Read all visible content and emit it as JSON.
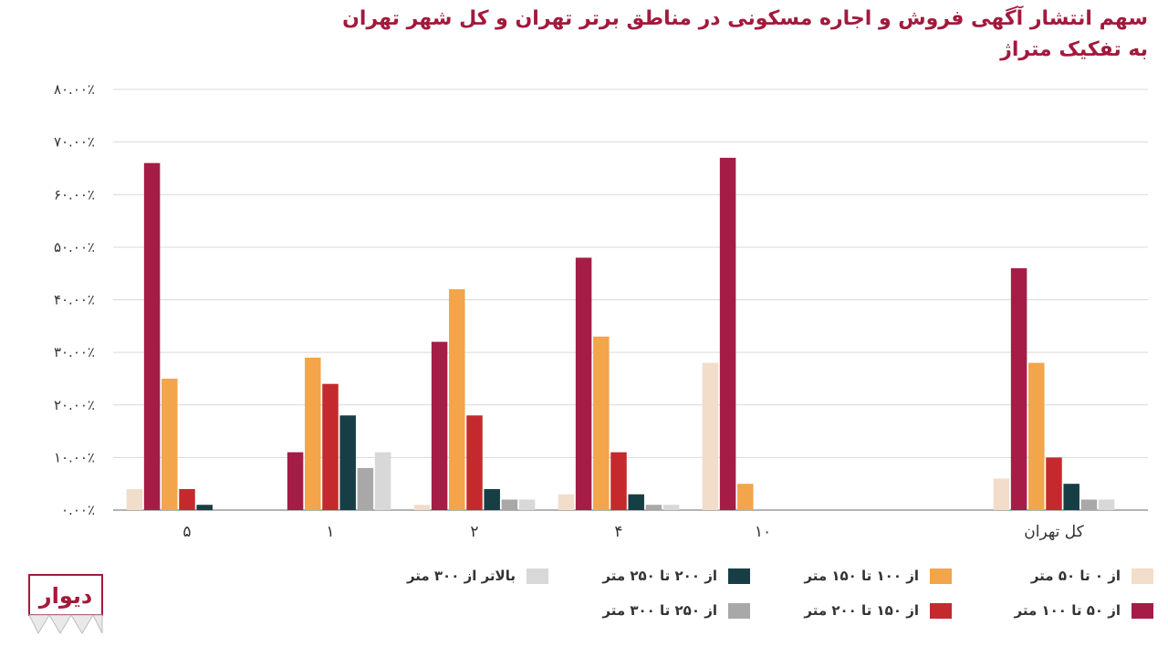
{
  "chart_data": {
    "type": "bar",
    "title_lines": [
      "سهم انتشار آگهی فروش و اجاره مسکونی در مناطق برتر تهران و کل شهر تهران",
      "به تفکیک متراژ"
    ],
    "categories": [
      "۵",
      "۱",
      "۲",
      "۴",
      "۱۰",
      "کل تهران"
    ],
    "ylim": [
      0,
      80
    ],
    "y_ticks": [
      0,
      10,
      20,
      30,
      40,
      50,
      60,
      70,
      80
    ],
    "y_tick_labels": [
      "۰.۰۰٪",
      "۱۰.۰۰٪",
      "۲۰.۰۰٪",
      "۳۰.۰۰٪",
      "۴۰.۰۰٪",
      "۵۰.۰۰٪",
      "۶۰.۰۰٪",
      "۷۰.۰۰٪",
      "۸۰.۰۰٪"
    ],
    "grid": true,
    "legend_position": "bottom",
    "series": [
      {
        "name": "از ۰ تا ۵۰ متر",
        "color": "#f1ddca",
        "values": [
          4,
          0,
          1,
          3,
          28,
          6
        ]
      },
      {
        "name": "از ۵۰ تا ۱۰۰ متر",
        "color": "#a51d47",
        "values": [
          66,
          11,
          32,
          48,
          67,
          46
        ]
      },
      {
        "name": "از ۱۰۰ تا ۱۵۰ متر",
        "color": "#f2a54a",
        "values": [
          25,
          29,
          42,
          33,
          5,
          28
        ]
      },
      {
        "name": "از ۱۵۰ تا ۲۰۰ متر",
        "color": "#c42a2d",
        "values": [
          4,
          24,
          18,
          11,
          0,
          10
        ]
      },
      {
        "name": "از ۲۰۰ تا ۲۵۰ متر",
        "color": "#173e45",
        "values": [
          1,
          18,
          4,
          3,
          0,
          5
        ]
      },
      {
        "name": "از ۲۵۰ تا ۳۰۰ متر",
        "color": "#a8a8a8",
        "values": [
          0,
          8,
          2,
          1,
          0,
          2
        ]
      },
      {
        "name": "بالاتر از ۳۰۰ متر",
        "color": "#d8d8d8",
        "values": [
          0,
          11,
          2,
          1,
          0,
          2
        ]
      }
    ]
  },
  "brand": {
    "logo_text": "دیوار",
    "color": "#a3193c"
  }
}
